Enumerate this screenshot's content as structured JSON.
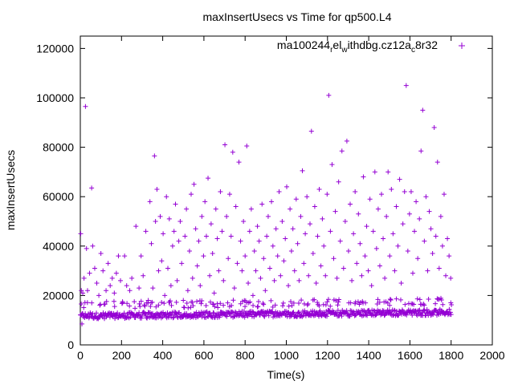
{
  "chart_data": {
    "type": "scatter",
    "title": "maxInsertUsecs vs Time for qp500.L4",
    "xlabel": "Time(s)",
    "ylabel": "maxInsertUsecs",
    "xlim": [
      0,
      2000
    ],
    "ylim": [
      0,
      125000
    ],
    "xticks": [
      0,
      200,
      400,
      600,
      800,
      1000,
      1200,
      1400,
      1600,
      1800,
      2000
    ],
    "yticks": [
      0,
      20000,
      40000,
      60000,
      80000,
      100000,
      120000
    ],
    "grid": false,
    "legend_position": "top-right",
    "series": [
      {
        "name_parts": [
          "ma100244",
          "r",
          "el",
          "w",
          "ithdbg.cz12a",
          "c",
          "8r32"
        ],
        "color": "#9400d3",
        "marker": "plus",
        "baseline_band": {
          "x_range": [
            0,
            1800
          ],
          "y_range": [
            10500,
            14500
          ]
        },
        "points": [
          [
            2,
            45000
          ],
          [
            5,
            22000
          ],
          [
            8,
            8500
          ],
          [
            12,
            21000
          ],
          [
            18,
            27000
          ],
          [
            25,
            96500
          ],
          [
            30,
            39000
          ],
          [
            35,
            22000
          ],
          [
            45,
            29000
          ],
          [
            55,
            63500
          ],
          [
            60,
            40000
          ],
          [
            70,
            31000
          ],
          [
            80,
            25000
          ],
          [
            90,
            20000
          ],
          [
            100,
            37000
          ],
          [
            110,
            30000
          ],
          [
            120,
            16500
          ],
          [
            125,
            22000
          ],
          [
            135,
            33000
          ],
          [
            145,
            24000
          ],
          [
            155,
            27000
          ],
          [
            165,
            21000
          ],
          [
            175,
            29000
          ],
          [
            185,
            36000
          ],
          [
            195,
            26000
          ],
          [
            205,
            17500
          ],
          [
            215,
            36000
          ],
          [
            225,
            24000
          ],
          [
            240,
            22000
          ],
          [
            250,
            27000
          ],
          [
            262,
            17500
          ],
          [
            270,
            48000
          ],
          [
            285,
            23000
          ],
          [
            295,
            36000
          ],
          [
            305,
            28000
          ],
          [
            318,
            46000
          ],
          [
            330,
            18000
          ],
          [
            338,
            58000
          ],
          [
            345,
            41000
          ],
          [
            352,
            23000
          ],
          [
            360,
            76500
          ],
          [
            365,
            50000
          ],
          [
            372,
            63000
          ],
          [
            380,
            30000
          ],
          [
            388,
            52000
          ],
          [
            395,
            34000
          ],
          [
            402,
            45000
          ],
          [
            410,
            20000
          ],
          [
            418,
            60000
          ],
          [
            425,
            31000
          ],
          [
            432,
            51000
          ],
          [
            440,
            24000
          ],
          [
            448,
            40000
          ],
          [
            455,
            46000
          ],
          [
            462,
            57000
          ],
          [
            470,
            26000
          ],
          [
            478,
            42000
          ],
          [
            485,
            50000
          ],
          [
            492,
            33000
          ],
          [
            500,
            18000
          ],
          [
            508,
            44000
          ],
          [
            515,
            55000
          ],
          [
            522,
            22000
          ],
          [
            530,
            38000
          ],
          [
            538,
            61000
          ],
          [
            545,
            27000
          ],
          [
            552,
            65000
          ],
          [
            560,
            47000
          ],
          [
            568,
            32000
          ],
          [
            575,
            42000
          ],
          [
            582,
            24000
          ],
          [
            590,
            52000
          ],
          [
            598,
            36000
          ],
          [
            605,
            58000
          ],
          [
            612,
            44000
          ],
          [
            620,
            67500
          ],
          [
            628,
            28000
          ],
          [
            635,
            49000
          ],
          [
            642,
            37000
          ],
          [
            650,
            21000
          ],
          [
            658,
            55000
          ],
          [
            665,
            43000
          ],
          [
            672,
            30000
          ],
          [
            680,
            62000
          ],
          [
            688,
            46000
          ],
          [
            695,
            26000
          ],
          [
            702,
            81000
          ],
          [
            710,
            52000
          ],
          [
            718,
            35000
          ],
          [
            725,
            61000
          ],
          [
            732,
            44000
          ],
          [
            740,
            78000
          ],
          [
            748,
            23000
          ],
          [
            755,
            56000
          ],
          [
            762,
            33000
          ],
          [
            770,
            74000
          ],
          [
            778,
            42000
          ],
          [
            785,
            30000
          ],
          [
            792,
            50000
          ],
          [
            800,
            36000
          ],
          [
            808,
            80500
          ],
          [
            815,
            25000
          ],
          [
            822,
            46000
          ],
          [
            830,
            55000
          ],
          [
            838,
            20000
          ],
          [
            845,
            38000
          ],
          [
            852,
            30000
          ],
          [
            860,
            48000
          ],
          [
            868,
            42000
          ],
          [
            875,
            27000
          ],
          [
            882,
            57000
          ],
          [
            890,
            35000
          ],
          [
            898,
            22000
          ],
          [
            905,
            44000
          ],
          [
            912,
            52000
          ],
          [
            920,
            31000
          ],
          [
            928,
            58000
          ],
          [
            935,
            40000
          ],
          [
            942,
            26000
          ],
          [
            950,
            47000
          ],
          [
            958,
            36000
          ],
          [
            965,
            62000
          ],
          [
            972,
            28000
          ],
          [
            980,
            50000
          ],
          [
            988,
            34000
          ],
          [
            995,
            43000
          ],
          [
            1002,
            64000
          ],
          [
            1010,
            24000
          ],
          [
            1018,
            55000
          ],
          [
            1025,
            38000
          ],
          [
            1032,
            47000
          ],
          [
            1040,
            30000
          ],
          [
            1048,
            59000
          ],
          [
            1055,
            41000
          ],
          [
            1062,
            26000
          ],
          [
            1070,
            52000
          ],
          [
            1078,
            70500
          ],
          [
            1085,
            33000
          ],
          [
            1092,
            45000
          ],
          [
            1100,
            60000
          ],
          [
            1108,
            28000
          ],
          [
            1115,
            49000
          ],
          [
            1122,
            86500
          ],
          [
            1130,
            37000
          ],
          [
            1138,
            56000
          ],
          [
            1145,
            25000
          ],
          [
            1152,
            44000
          ],
          [
            1160,
            63000
          ],
          [
            1168,
            32000
          ],
          [
            1175,
            51000
          ],
          [
            1182,
            40000
          ],
          [
            1190,
            28000
          ],
          [
            1198,
            61000
          ],
          [
            1206,
            101000
          ],
          [
            1214,
            46000
          ],
          [
            1222,
            73000
          ],
          [
            1230,
            35000
          ],
          [
            1238,
            54000
          ],
          [
            1246,
            27000
          ],
          [
            1254,
            66000
          ],
          [
            1262,
            42000
          ],
          [
            1270,
            78500
          ],
          [
            1278,
            31000
          ],
          [
            1286,
            50000
          ],
          [
            1294,
            82500
          ],
          [
            1302,
            38000
          ],
          [
            1310,
            57000
          ],
          [
            1318,
            26000
          ],
          [
            1326,
            45000
          ],
          [
            1334,
            62000
          ],
          [
            1342,
            33000
          ],
          [
            1350,
            53000
          ],
          [
            1358,
            41000
          ],
          [
            1366,
            28000
          ],
          [
            1374,
            68000
          ],
          [
            1382,
            36000
          ],
          [
            1390,
            48000
          ],
          [
            1398,
            30000
          ],
          [
            1406,
            59000
          ],
          [
            1414,
            24000
          ],
          [
            1422,
            46000
          ],
          [
            1430,
            70000
          ],
          [
            1438,
            39000
          ],
          [
            1446,
            55000
          ],
          [
            1454,
            32000
          ],
          [
            1462,
            61000
          ],
          [
            1470,
            43000
          ],
          [
            1478,
            27000
          ],
          [
            1486,
            52000
          ],
          [
            1494,
            70000
          ],
          [
            1502,
            36000
          ],
          [
            1510,
            63000
          ],
          [
            1518,
            45000
          ],
          [
            1526,
            30000
          ],
          [
            1534,
            56000
          ],
          [
            1542,
            40000
          ],
          [
            1550,
            67000
          ],
          [
            1558,
            25000
          ],
          [
            1566,
            49000
          ],
          [
            1574,
            62000
          ],
          [
            1582,
            105000
          ],
          [
            1590,
            38000
          ],
          [
            1598,
            53000
          ],
          [
            1606,
            62000
          ],
          [
            1614,
            29000
          ],
          [
            1622,
            46000
          ],
          [
            1630,
            58000
          ],
          [
            1638,
            35000
          ],
          [
            1646,
            51000
          ],
          [
            1654,
            78500
          ],
          [
            1662,
            95000
          ],
          [
            1670,
            42000
          ],
          [
            1678,
            60000
          ],
          [
            1686,
            30000
          ],
          [
            1694,
            54000
          ],
          [
            1702,
            47000
          ],
          [
            1710,
            37000
          ],
          [
            1718,
            88000
          ],
          [
            1726,
            44000
          ],
          [
            1734,
            74000
          ],
          [
            1742,
            31000
          ],
          [
            1750,
            52000
          ],
          [
            1758,
            40000
          ],
          [
            1766,
            61000
          ],
          [
            1774,
            28000
          ],
          [
            1782,
            43000
          ],
          [
            1790,
            36000
          ],
          [
            1798,
            27000
          ]
        ]
      }
    ]
  }
}
